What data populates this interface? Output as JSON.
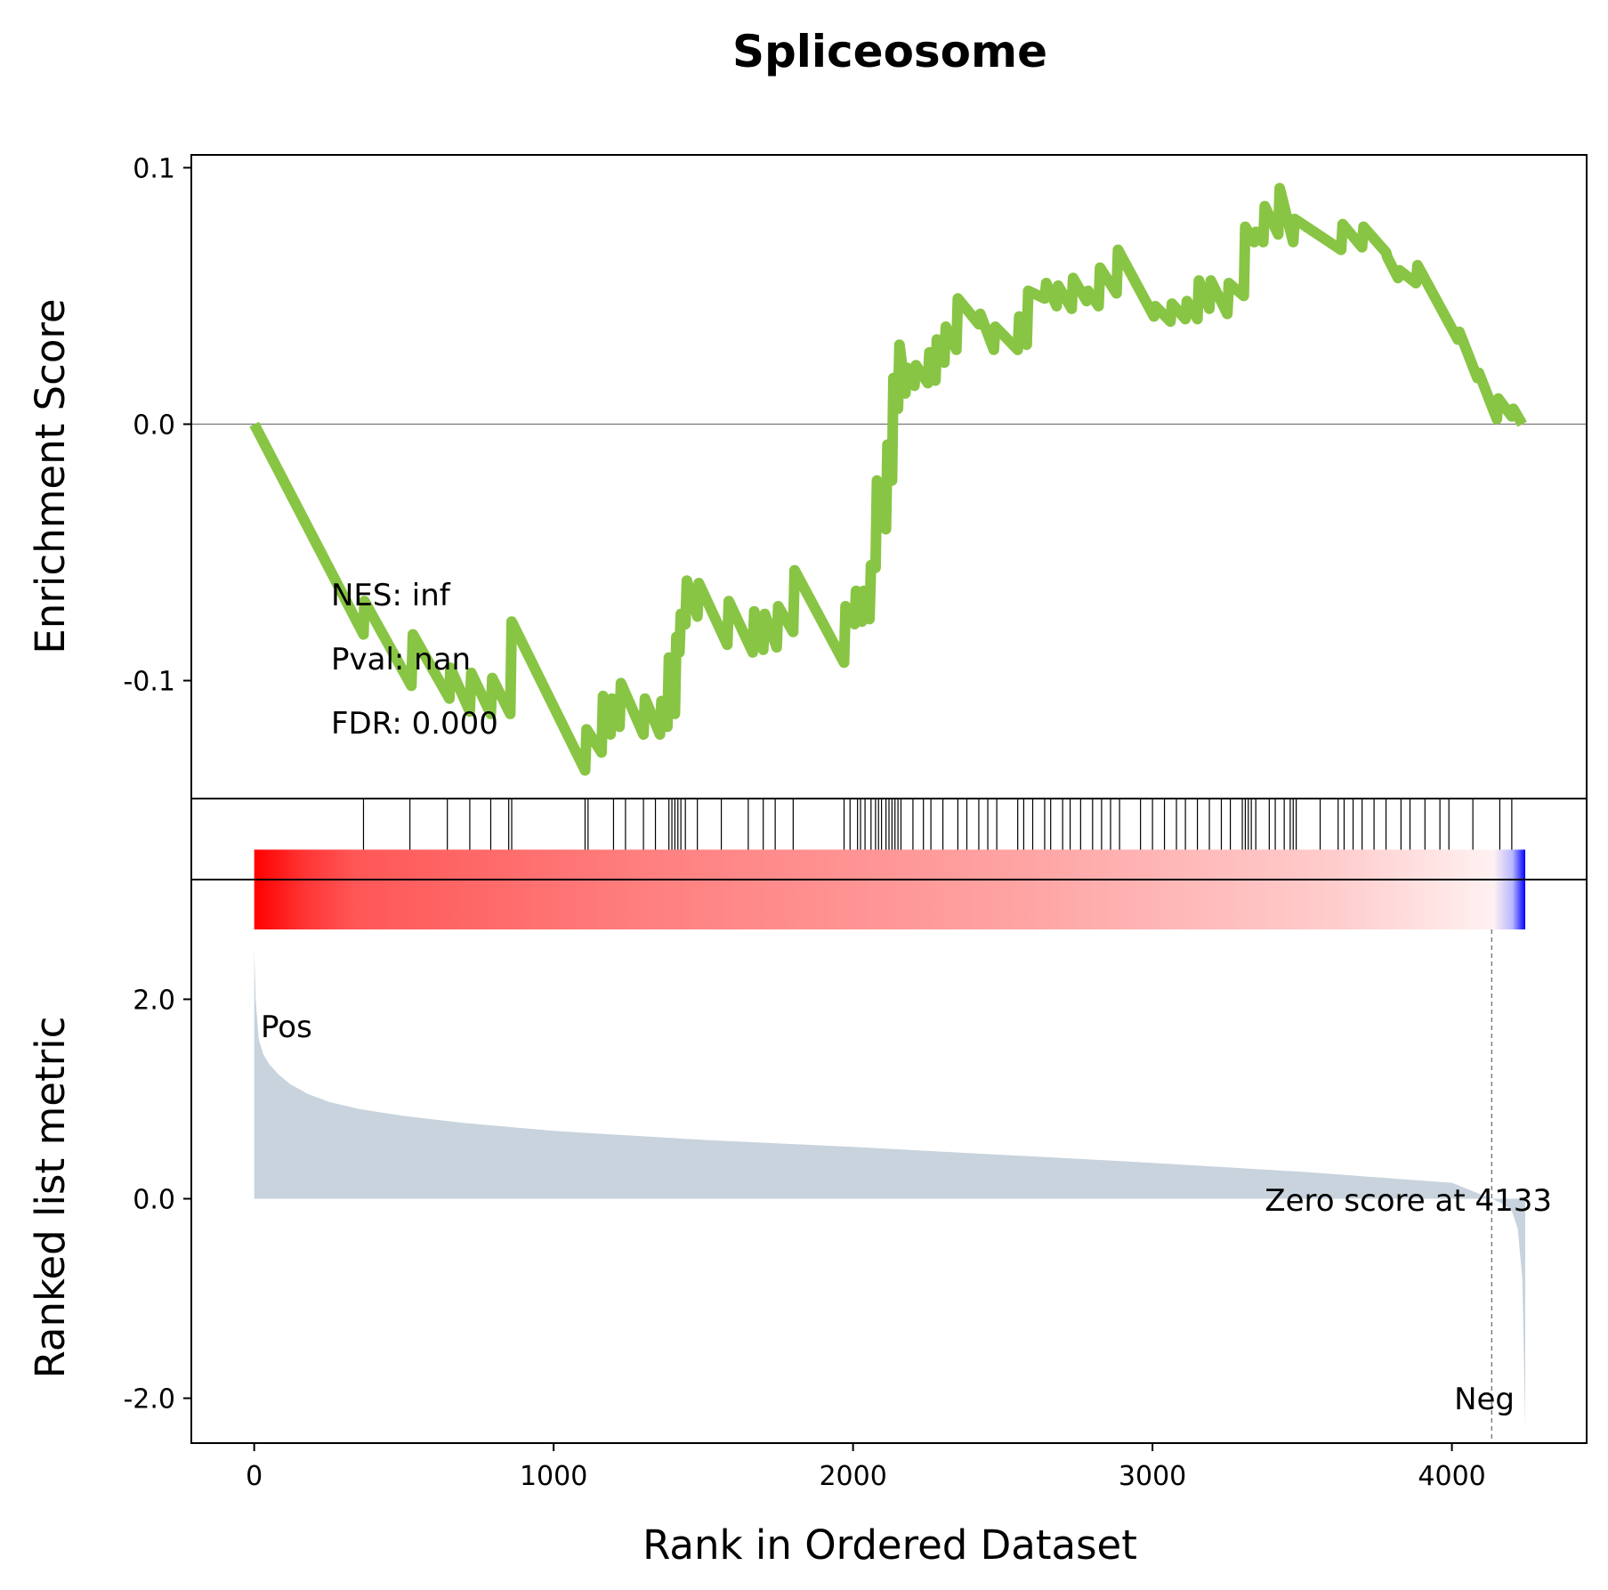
{
  "chart_data": {
    "type": "line",
    "title": "Spliceosome",
    "xlabel": "Rank in Ordered Dataset",
    "xlim": [
      -210,
      4450
    ],
    "xticks": [
      0,
      1000,
      2000,
      3000,
      4000
    ],
    "xtick_labels": [
      "0",
      "1000",
      "2000",
      "3000",
      "4000"
    ],
    "es_panel": {
      "ylabel": "Enrichment Score",
      "ylim": [
        -0.146,
        0.105
      ],
      "yticks": [
        0.1,
        0.0,
        -0.1
      ],
      "ytick_labels": [
        "0.1",
        "0.0",
        "-0.1"
      ],
      "line_color": "#88c544",
      "zero_line": true,
      "series": [
        {
          "x": [
            0,
            365,
            368,
            525,
            530,
            652,
            655,
            720,
            725,
            790,
            795,
            855,
            860,
            1105,
            1110,
            1160,
            1165,
            1190,
            1195,
            1220,
            1225,
            1300,
            1305,
            1355,
            1360,
            1380,
            1385,
            1405,
            1410,
            1420,
            1425,
            1440,
            1445,
            1480,
            1485,
            1580,
            1585,
            1665,
            1670,
            1700,
            1705,
            1745,
            1750,
            1800,
            1805,
            1970,
            1975,
            2005,
            2010,
            2030,
            2035,
            2055,
            2060,
            2075,
            2080,
            2110,
            2115,
            2130,
            2135,
            2150,
            2155,
            2175,
            2180,
            2205,
            2210,
            2250,
            2255,
            2275,
            2280,
            2305,
            2310,
            2345,
            2350,
            2420,
            2425,
            2470,
            2475,
            2550,
            2555,
            2580,
            2585,
            2640,
            2645,
            2680,
            2685,
            2730,
            2735,
            2780,
            2785,
            2820,
            2825,
            2880,
            2885,
            3005,
            3010,
            3060,
            3065,
            3110,
            3115,
            3150,
            3155,
            3190,
            3195,
            3250,
            3255,
            3305,
            3310,
            3340,
            3345,
            3370,
            3375,
            3420,
            3425,
            3470,
            3475,
            3630,
            3635,
            3700,
            3705,
            3780,
            3785,
            3820,
            3825,
            3880,
            3885,
            4020,
            4025,
            4085,
            4090,
            4150,
            4155,
            4200,
            4205,
            4235
          ],
          "y": [
            0.0,
            -0.082,
            -0.069,
            -0.102,
            -0.082,
            -0.107,
            -0.095,
            -0.112,
            -0.097,
            -0.113,
            -0.099,
            -0.113,
            -0.077,
            -0.135,
            -0.119,
            -0.128,
            -0.106,
            -0.121,
            -0.107,
            -0.118,
            -0.101,
            -0.121,
            -0.107,
            -0.121,
            -0.108,
            -0.118,
            -0.091,
            -0.113,
            -0.083,
            -0.089,
            -0.074,
            -0.078,
            -0.061,
            -0.075,
            -0.062,
            -0.086,
            -0.069,
            -0.089,
            -0.073,
            -0.088,
            -0.074,
            -0.087,
            -0.071,
            -0.081,
            -0.057,
            -0.093,
            -0.071,
            -0.078,
            -0.065,
            -0.077,
            -0.065,
            -0.076,
            -0.055,
            -0.056,
            -0.022,
            -0.041,
            -0.008,
            -0.022,
            0.018,
            0.006,
            0.031,
            0.012,
            0.022,
            0.015,
            0.023,
            0.016,
            0.028,
            0.017,
            0.033,
            0.024,
            0.038,
            0.029,
            0.049,
            0.039,
            0.043,
            0.029,
            0.038,
            0.029,
            0.042,
            0.031,
            0.052,
            0.049,
            0.055,
            0.046,
            0.054,
            0.045,
            0.057,
            0.048,
            0.052,
            0.046,
            0.061,
            0.051,
            0.068,
            0.042,
            0.046,
            0.04,
            0.047,
            0.041,
            0.048,
            0.041,
            0.056,
            0.045,
            0.056,
            0.043,
            0.055,
            0.05,
            0.077,
            0.071,
            0.075,
            0.071,
            0.085,
            0.074,
            0.092,
            0.071,
            0.08,
            0.068,
            0.078,
            0.069,
            0.077,
            0.067,
            0.065,
            0.057,
            0.06,
            0.055,
            0.062,
            0.033,
            0.036,
            0.018,
            0.02,
            0.002,
            0.01,
            0.003,
            0.006,
            0.0
          ]
        }
      ],
      "annotations": [
        "NES: inf",
        "Pval: nan",
        "FDR: 0.000"
      ]
    },
    "hits_panel": {
      "hit_ranks": [
        365,
        520,
        645,
        720,
        790,
        850,
        860,
        1105,
        1115,
        1200,
        1240,
        1300,
        1340,
        1385,
        1395,
        1405,
        1415,
        1425,
        1440,
        1480,
        1560,
        1650,
        1700,
        1740,
        1800,
        1970,
        1990,
        2015,
        2025,
        2040,
        2060,
        2075,
        2085,
        2095,
        2110,
        2120,
        2130,
        2140,
        2150,
        2160,
        2200,
        2235,
        2260,
        2300,
        2350,
        2380,
        2420,
        2450,
        2480,
        2550,
        2570,
        2600,
        2640,
        2660,
        2700,
        2725,
        2760,
        2800,
        2830,
        2860,
        2890,
        2960,
        3000,
        3040,
        3080,
        3110,
        3150,
        3190,
        3230,
        3260,
        3300,
        3310,
        3320,
        3330,
        3345,
        3390,
        3410,
        3440,
        3460,
        3470,
        3480,
        3560,
        3620,
        3640,
        3670,
        3700,
        3740,
        3780,
        3830,
        3860,
        3910,
        3960,
        3990,
        4070,
        4160,
        4200
      ]
    },
    "metric_panel": {
      "ylabel": "Ranked list metric",
      "ylim": [
        -2.45,
        3.2
      ],
      "yticks": [
        2.0,
        0.0,
        -2.0
      ],
      "ytick_labels": [
        "2.0",
        "0.0",
        "-2.0"
      ],
      "fill_color": "#c8d3dd",
      "heatbar_ylim": [
        2.7,
        3.5
      ],
      "x": [
        0,
        5,
        15,
        30,
        50,
        80,
        120,
        180,
        250,
        350,
        500,
        700,
        1000,
        1500,
        2000,
        2500,
        3000,
        3500,
        4000,
        4133,
        4170,
        4200,
        4220,
        4235,
        4240,
        4245
      ],
      "y": [
        2.5,
        2.0,
        1.6,
        1.45,
        1.35,
        1.25,
        1.15,
        1.05,
        0.97,
        0.9,
        0.83,
        0.76,
        0.68,
        0.59,
        0.52,
        0.44,
        0.36,
        0.27,
        0.16,
        0.0,
        -0.05,
        -0.12,
        -0.3,
        -0.8,
        -1.5,
        -2.3
      ],
      "labels": {
        "pos": "Pos",
        "neg": "Neg",
        "zero": "Zero score at 4133"
      },
      "label_colors": {
        "pos": "#ff0000",
        "neg": "#0000ff",
        "zero": "#000000"
      },
      "zero_cross": 4133
    }
  }
}
